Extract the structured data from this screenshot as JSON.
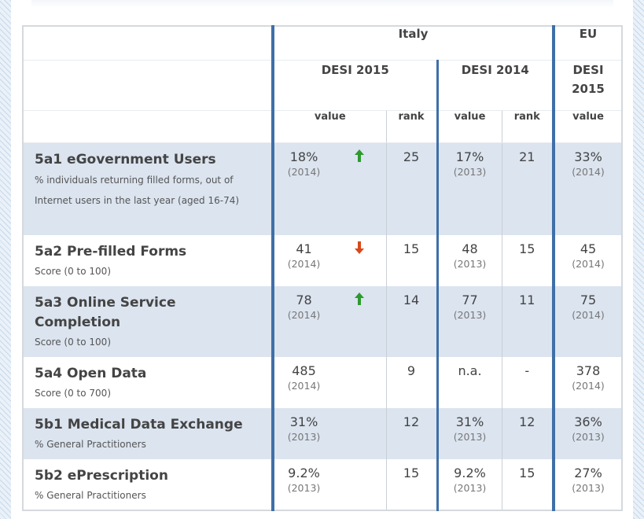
{
  "header": {
    "italy": "Italy",
    "eu": "EU",
    "desi2015": "DESI 2015",
    "desi2014": "DESI 2014",
    "eu_desi_line1": "DESI",
    "eu_desi_line2": "2015",
    "value": "value",
    "rank": "rank"
  },
  "rows": [
    {
      "name": "5a1 eGovernment Users",
      "desc": "% individuals returning filled forms, out of Internet users in the last year (aged 16-74)",
      "v15": "18%",
      "y15": "(2014)",
      "trend": "up",
      "r15": "25",
      "v14": "17%",
      "y14": "(2013)",
      "r14": "21",
      "eu": "33%",
      "yeu": "(2014)"
    },
    {
      "name": "5a2 Pre-filled Forms",
      "desc": "Score (0 to 100)",
      "v15": "41",
      "y15": "(2014)",
      "trend": "down",
      "r15": "15",
      "v14": "48",
      "y14": "(2013)",
      "r14": "15",
      "eu": "45",
      "yeu": "(2014)"
    },
    {
      "name": "5a3 Online Service Completion",
      "desc": "Score (0 to 100)",
      "v15": "78",
      "y15": "(2014)",
      "trend": "up",
      "r15": "14",
      "v14": "77",
      "y14": "(2013)",
      "r14": "11",
      "eu": "75",
      "yeu": "(2014)"
    },
    {
      "name": "5a4 Open Data",
      "desc": "Score (0 to 700)",
      "v15": "485",
      "y15": "(2014)",
      "trend": "",
      "r15": "9",
      "v14": "n.a.",
      "y14": "",
      "r14": "-",
      "eu": "378",
      "yeu": "(2014)"
    },
    {
      "name": "5b1 Medical Data Exchange",
      "desc": "% General Practitioners",
      "v15": "31%",
      "y15": "(2013)",
      "trend": "",
      "r15": "12",
      "v14": "31%",
      "y14": "(2013)",
      "r14": "12",
      "eu": "36%",
      "yeu": "(2013)"
    },
    {
      "name": "5b2 ePrescription",
      "desc": "% General Practitioners",
      "v15": "9.2%",
      "y15": "(2013)",
      "trend": "",
      "r15": "15",
      "v14": "9.2%",
      "y14": "(2013)",
      "r14": "15",
      "eu": "27%",
      "yeu": "(2013)"
    }
  ],
  "colors": {
    "separator": "#3f6fa8",
    "row_shade": "#dbe4ef",
    "arrow_up": "#2e9a2e",
    "arrow_down": "#d9481b"
  }
}
